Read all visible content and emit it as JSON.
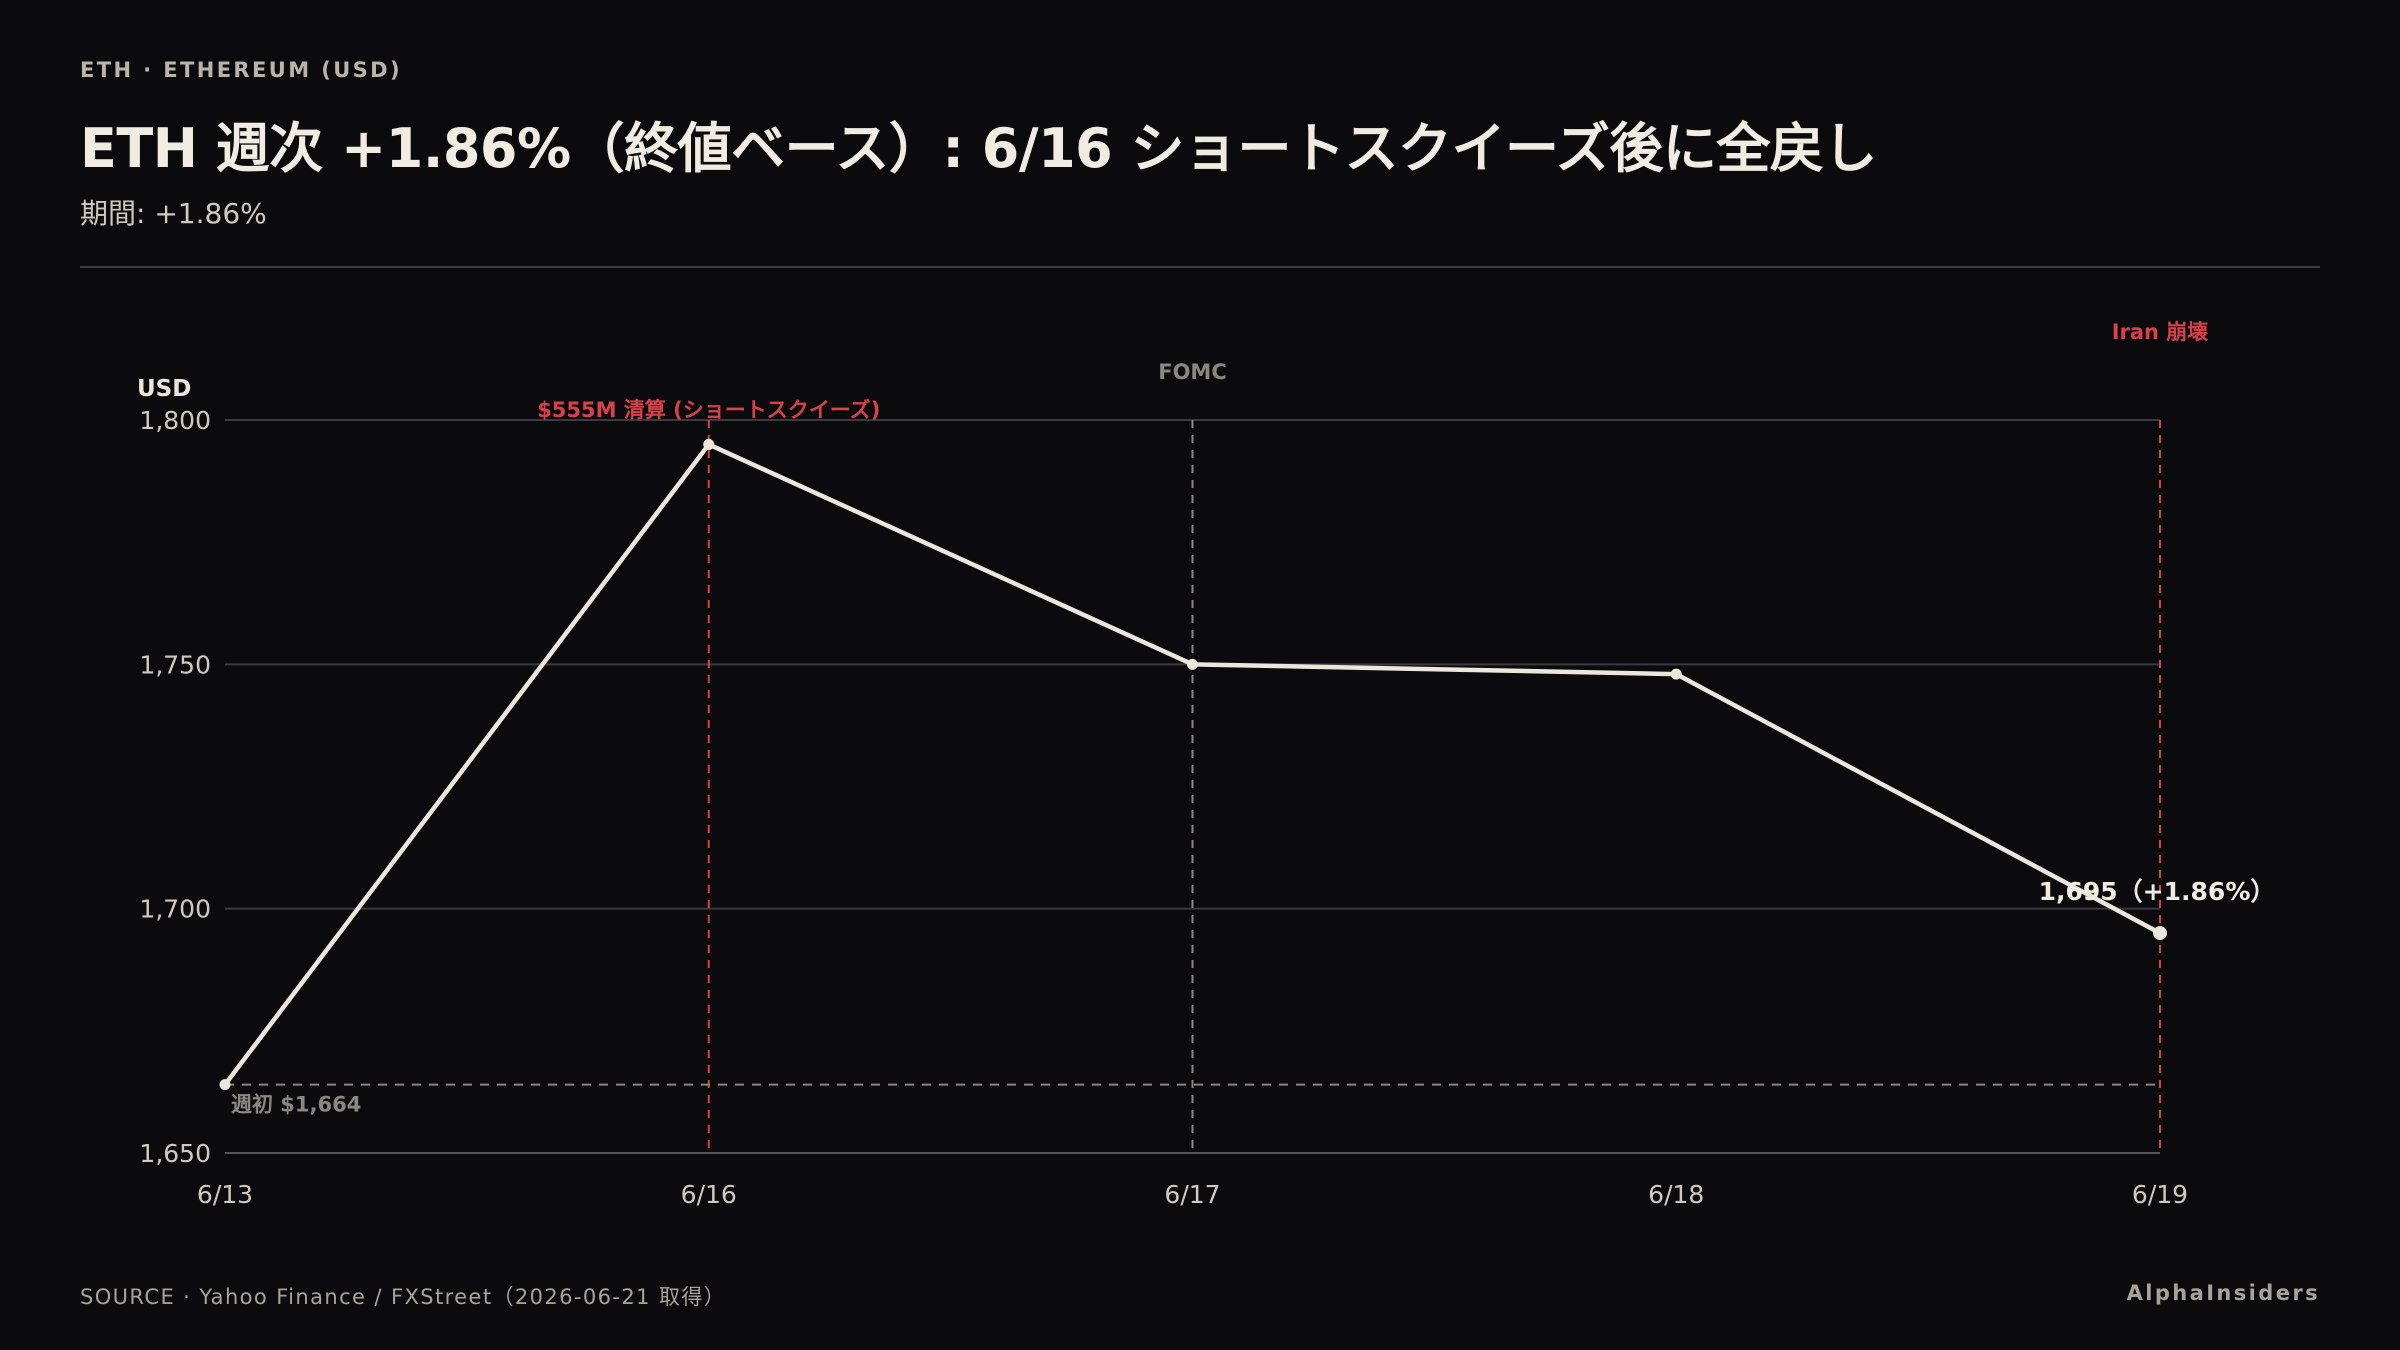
{
  "header": {
    "kicker": "ETH · ETHEREUM (USD)",
    "title": "ETH 週次 +1.86%（終値ベース）: 6/16 ショートスクイーズ後に全戻し",
    "subtitle": "期間: +1.86%"
  },
  "footer": {
    "source": "SOURCE · Yahoo Finance / FXStreet（2026-06-21 取得）",
    "brand": "AlphaInsiders"
  },
  "colors": {
    "background": "#0b0b0e",
    "line": "#ece7dc",
    "event_red": "#d9414a",
    "event_gray": "#8a8780",
    "grid": "#3a3a40"
  },
  "chart_data": {
    "type": "line",
    "title": "ETH 週次 +1.86%（終値ベース）: 6/16 ショートスクイーズ後に全戻し",
    "ylabel": "USD",
    "xlabel": "",
    "categories": [
      "6/13",
      "6/16",
      "6/17",
      "6/18",
      "6/19"
    ],
    "series": [
      {
        "values": [
          1664,
          1795,
          1750,
          1748,
          1695
        ]
      }
    ],
    "ylim": [
      1650,
      1800
    ],
    "yticks": [
      1650,
      1700,
      1750,
      1800
    ],
    "ytick_labels": [
      "1,650",
      "1,700",
      "1,750",
      "1,800"
    ],
    "grid": true,
    "baseline": {
      "value": 1664,
      "label": "週初 $1,664"
    },
    "end_label": "1,695（+1.86%）",
    "events": [
      {
        "x": "6/16",
        "label": "$555M 清算 (ショートスクイーズ)",
        "color": "#d9414a",
        "label_level": 1
      },
      {
        "x": "6/17",
        "label": "FOMC",
        "color": "#8a8780",
        "label_level": 2
      },
      {
        "x": "6/19",
        "label": "Iran 崩壊",
        "color": "#d9414a",
        "label_level": 3
      }
    ]
  }
}
